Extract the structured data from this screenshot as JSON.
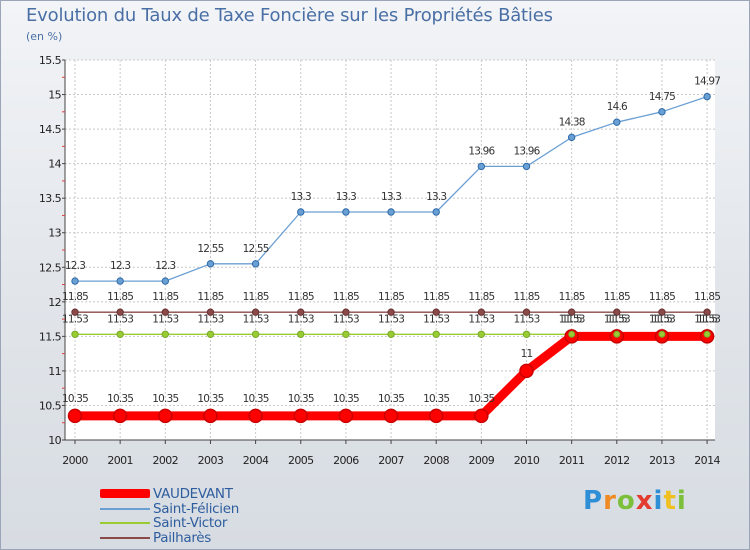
{
  "chart_data": {
    "type": "line",
    "title": "Evolution du Taux de Taxe Foncière sur les Propriétés Bâties",
    "unit_label": "(en %)",
    "xlabel": "",
    "ylabel": "",
    "ylim": [
      10,
      15.5
    ],
    "ytick_labels": [
      "10",
      "10.5",
      "11",
      "11.5",
      "12",
      "12.5",
      "13",
      "13.5",
      "14",
      "14.5",
      "15",
      "15.5"
    ],
    "yticks": [
      10,
      10.5,
      11,
      11.5,
      12,
      12.5,
      13,
      13.5,
      14,
      14.5,
      15,
      15.5
    ],
    "categories": [
      "2000",
      "2001",
      "2002",
      "2003",
      "2004",
      "2005",
      "2006",
      "2007",
      "2008",
      "2009",
      "2010",
      "2011",
      "2012",
      "2013",
      "2014"
    ],
    "series": [
      {
        "name": "VAUDEVANT",
        "color": "#ff0000",
        "values": [
          10.35,
          10.35,
          10.35,
          10.35,
          10.35,
          10.35,
          10.35,
          10.35,
          10.35,
          10.35,
          11,
          11.5,
          11.5,
          11.5,
          11.5
        ],
        "labels": [
          "10.35",
          "10.35",
          "10.35",
          "10.35",
          "10.35",
          "10.35",
          "10.35",
          "10.35",
          "10.35",
          "10.35",
          "11",
          "11.5",
          "11.5",
          "11.5",
          "11.5"
        ]
      },
      {
        "name": "Saint-Félicien",
        "color": "#6a9fd4",
        "values": [
          12.3,
          12.3,
          12.3,
          12.55,
          12.55,
          13.3,
          13.3,
          13.3,
          13.3,
          13.96,
          13.96,
          14.38,
          14.6,
          14.75,
          14.97
        ],
        "labels": [
          "12.3",
          "12.3",
          "12.3",
          "12.55",
          "12.55",
          "13.3",
          "13.3",
          "13.3",
          "13.3",
          "13.96",
          "13.96",
          "14.38",
          "14.6",
          "14.75",
          "14.97"
        ]
      },
      {
        "name": "Saint-Victor",
        "color": "#99cc33",
        "values": [
          11.53,
          11.53,
          11.53,
          11.53,
          11.53,
          11.53,
          11.53,
          11.53,
          11.53,
          11.53,
          11.53,
          11.53,
          11.53,
          11.53,
          11.53
        ],
        "labels": [
          "11.53",
          "11.53",
          "11.53",
          "11.53",
          "11.53",
          "11.53",
          "11.53",
          "11.53",
          "11.53",
          "11.53",
          "11.53",
          "11.53",
          "11.53",
          "11.53",
          "11.53"
        ]
      },
      {
        "name": "Pailharès",
        "color": "#8b4a4a",
        "values": [
          11.85,
          11.85,
          11.85,
          11.85,
          11.85,
          11.85,
          11.85,
          11.85,
          11.85,
          11.85,
          11.85,
          11.85,
          11.85,
          11.85,
          11.85
        ],
        "labels": [
          "11.85",
          "11.85",
          "11.85",
          "11.85",
          "11.85",
          "11.85",
          "11.85",
          "11.85",
          "11.85",
          "11.85",
          "11.85",
          "11.85",
          "11.85",
          "11.85",
          "11.85"
        ]
      }
    ],
    "legend_position": "bottom-left"
  },
  "logo": {
    "letters": [
      "P",
      "r",
      "o",
      "x",
      "i",
      "t",
      "i"
    ],
    "colors": [
      "#2f8fd6",
      "#f08a24",
      "#7cbf3a",
      "#e43b2f",
      "#2f8fd6",
      "#f0c020",
      "#7cbf3a"
    ]
  }
}
